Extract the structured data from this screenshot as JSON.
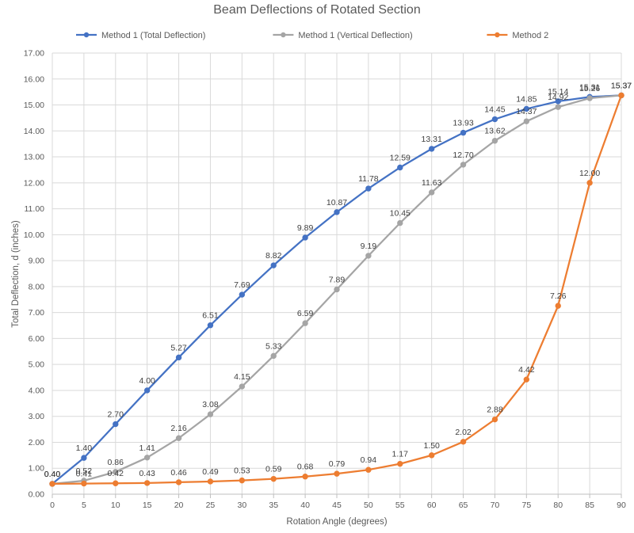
{
  "chart_data": {
    "type": "line",
    "title": "Beam Deflections of Rotated Section",
    "xlabel": "Rotation Angle (degrees)",
    "ylabel": "Total Deflection, d (inches)",
    "x": [
      0,
      5,
      10,
      15,
      20,
      25,
      30,
      35,
      40,
      45,
      50,
      55,
      60,
      65,
      70,
      75,
      80,
      85,
      90
    ],
    "xlim": [
      0,
      90
    ],
    "ylim": [
      0,
      17
    ],
    "x_ticks": [
      "0",
      "5",
      "10",
      "15",
      "20",
      "25",
      "30",
      "35",
      "40",
      "45",
      "50",
      "55",
      "60",
      "65",
      "70",
      "75",
      "80",
      "85",
      "90"
    ],
    "y_ticks": [
      "0.00",
      "1.00",
      "2.00",
      "3.00",
      "4.00",
      "5.00",
      "6.00",
      "7.00",
      "8.00",
      "9.00",
      "10.00",
      "11.00",
      "12.00",
      "13.00",
      "14.00",
      "15.00",
      "16.00",
      "17.00"
    ],
    "grid": true,
    "legend_position": "top",
    "series": [
      {
        "name": "Method 1 (Total Deflection)",
        "color": "#4472c4",
        "values": [
          0.4,
          1.4,
          2.7,
          4.0,
          5.27,
          6.51,
          7.69,
          8.82,
          9.89,
          10.87,
          11.78,
          12.59,
          13.31,
          13.93,
          14.45,
          14.85,
          15.14,
          15.31,
          15.37
        ],
        "labels": [
          "0.40",
          "1.40",
          "2.70",
          "4.00",
          "5.27",
          "6.51",
          "7.69",
          "8.82",
          "9.89",
          "10.87",
          "11.78",
          "12.59",
          "13.31",
          "13.93",
          "14.45",
          "14.85",
          "15.14",
          "15.31",
          "15.37"
        ]
      },
      {
        "name": "Method 1 (Vertical Deflection)",
        "color": "#a5a5a5",
        "values": [
          0.4,
          0.52,
          0.86,
          1.41,
          2.16,
          3.08,
          4.15,
          5.33,
          6.59,
          7.89,
          9.19,
          10.45,
          11.63,
          12.7,
          13.62,
          14.37,
          14.92,
          15.26,
          15.37
        ],
        "labels": [
          "0.40",
          "0.52",
          "0.86",
          "1.41",
          "2.16",
          "3.08",
          "4.15",
          "5.33",
          "6.59",
          "7.89",
          "9.19",
          "10.45",
          "11.63",
          "12.70",
          "13.62",
          "14.37",
          "14.92",
          "15.26",
          "15.37"
        ]
      },
      {
        "name": "Method 2",
        "color": "#ed7d31",
        "values": [
          0.4,
          0.41,
          0.42,
          0.43,
          0.46,
          0.49,
          0.53,
          0.59,
          0.68,
          0.79,
          0.94,
          1.17,
          1.5,
          2.02,
          2.88,
          4.42,
          7.26,
          12.0,
          15.37
        ],
        "labels": [
          "0.40",
          "0.41",
          "0.42",
          "0.43",
          "0.46",
          "0.49",
          "0.53",
          "0.59",
          "0.68",
          "0.79",
          "0.94",
          "1.17",
          "1.50",
          "2.02",
          "2.88",
          "4.42",
          "7.26",
          "12.00",
          "15.37"
        ]
      }
    ]
  }
}
